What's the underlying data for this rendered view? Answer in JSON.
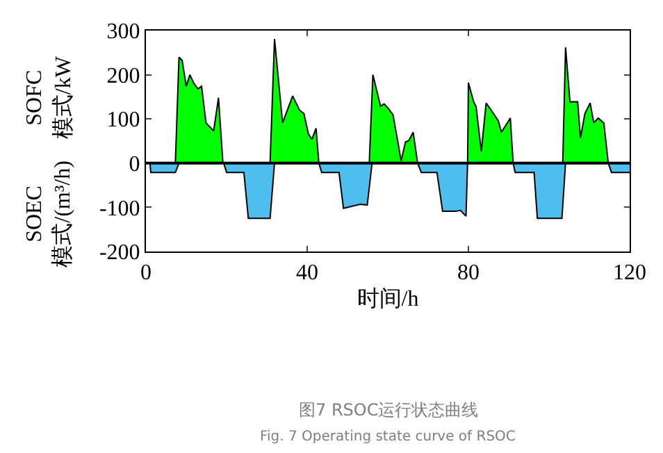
{
  "chart_data": {
    "type": "area",
    "xlabel": "时间/h",
    "ylabel": "SOFC\n模式/kW",
    "xlim": [
      0,
      120
    ],
    "xticks": [
      0,
      40,
      80,
      120
    ],
    "ylim": [
      -200,
      300
    ],
    "yticks": [
      -200,
      -100,
      0,
      100,
      200,
      300
    ],
    "series": [
      {
        "color": "#00ff00",
        "x": [
          7.3,
          8.2,
          9.0,
          10.0,
          10.9,
          11.8,
          12.9,
          13.8,
          14.9,
          16.8,
          18.0,
          19.1,
          30.8,
          31.9,
          33.9,
          36.4,
          38.1,
          39.2,
          40.3,
          41.2,
          42.2,
          42.9,
          55.4,
          56.3,
          58.2,
          59.1,
          60.2,
          61.3,
          62.4,
          63.3,
          64.4,
          65.2,
          66.3,
          67.4,
          79.8,
          80.0,
          81.3,
          81.9,
          83.2,
          84.4,
          85.8,
          87.4,
          88.2,
          90.4,
          91.1,
          103.4,
          104.1,
          105.2,
          107.1,
          107.8,
          108.9,
          110.2,
          111.1,
          112.2,
          113.6,
          114.7
        ],
        "values": [
          0,
          240,
          232,
          174,
          200,
          182,
          168,
          174,
          91,
          73,
          148,
          0,
          0,
          281,
          91,
          152,
          120,
          112,
          66,
          54,
          79,
          0,
          0,
          200,
          129,
          134,
          123,
          109,
          53,
          5,
          48,
          51,
          70,
          0,
          0,
          182,
          139,
          128,
          27,
          136,
          118,
          96,
          70,
          102,
          0,
          0,
          262,
          139,
          139,
          57,
          112,
          136,
          91,
          102,
          91,
          0
        ]
      },
      {
        "color": "#4dbeee",
        "x": [
          1.0,
          1.2,
          7.3,
          8.2,
          19.3,
          20.0,
          24.3,
          25.4,
          30.8,
          31.9,
          42.9,
          43.6,
          47.9,
          49.0,
          50.0,
          53.2,
          54.9,
          56.1,
          67.4,
          68.3,
          72.2,
          73.6,
          76.9,
          78.0,
          79.4,
          79.8,
          91.1,
          91.6,
          96.3,
          97.1,
          103.2,
          104.1,
          114.7,
          115.5,
          120.0
        ],
        "values": [
          0,
          -21,
          -21,
          0,
          0,
          -21,
          -21,
          -125,
          -125,
          0,
          0,
          -21,
          -21,
          -102,
          -100,
          -93,
          -95,
          0,
          0,
          -21,
          -21,
          -109,
          -109,
          -107,
          -120,
          0,
          0,
          -21,
          -21,
          -125,
          -125,
          0,
          0,
          -21,
          -21
        ]
      }
    ],
    "ref_lines": [
      {
        "axis": "y",
        "value": 0,
        "color": "#000000"
      }
    ],
    "annotations": [
      "SOEC\n模式/(m³/h)",
      "图7 RSOC运行状态曲线",
      "Fig. 7 Operating state curve of RSOC"
    ]
  }
}
